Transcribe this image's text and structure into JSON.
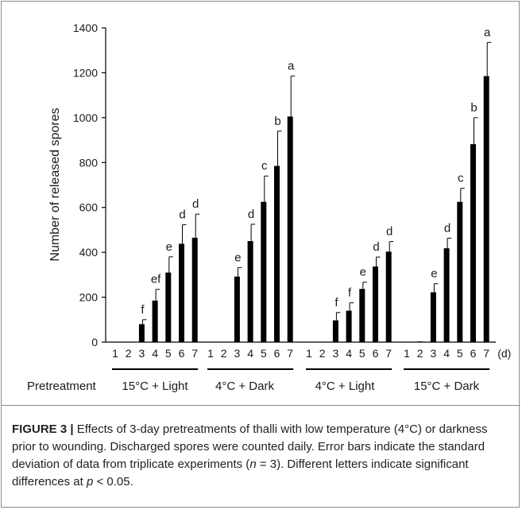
{
  "chart_data": {
    "type": "bar",
    "ylabel": "Number  of released spores",
    "ylim": [
      0,
      1400
    ],
    "yticks": [
      0,
      200,
      400,
      600,
      800,
      1000,
      1200,
      1400
    ],
    "x_unit": "(d)",
    "group_prefix": "Pretreatment",
    "grid": false,
    "groups": [
      {
        "name": "15°C + Light",
        "days": [
          "1",
          "2",
          "3",
          "4",
          "5",
          "6",
          "7"
        ],
        "values": [
          0,
          0,
          80,
          185,
          310,
          438,
          465
        ],
        "errors": [
          0,
          0,
          20,
          50,
          70,
          85,
          105
        ],
        "letters": [
          "",
          "",
          "f",
          "ef",
          "e",
          "d",
          "d"
        ]
      },
      {
        "name": "4°C + Dark",
        "days": [
          "1",
          "2",
          "3",
          "4",
          "5",
          "6",
          "7"
        ],
        "values": [
          0,
          0,
          292,
          450,
          625,
          785,
          1005
        ],
        "errors": [
          0,
          0,
          40,
          75,
          115,
          155,
          180
        ],
        "letters": [
          "",
          "",
          "e",
          "d",
          "c",
          "b",
          "a"
        ]
      },
      {
        "name": "4°C + Light",
        "days": [
          "1",
          "2",
          "3",
          "4",
          "5",
          "6",
          "7"
        ],
        "values": [
          0,
          0,
          97,
          140,
          237,
          337,
          403
        ],
        "errors": [
          0,
          0,
          35,
          35,
          30,
          42,
          45
        ],
        "letters": [
          "",
          "",
          "f",
          "f",
          "e",
          "d",
          "d"
        ]
      },
      {
        "name": "15°C + Dark",
        "days": [
          "1",
          "2",
          "3",
          "4",
          "5",
          "6",
          "7"
        ],
        "values": [
          0,
          3,
          222,
          418,
          625,
          882,
          1185
        ],
        "errors": [
          0,
          0,
          38,
          45,
          60,
          118,
          150
        ],
        "letters": [
          "",
          "",
          "e",
          "d",
          "c",
          "b",
          "a"
        ]
      }
    ]
  },
  "caption": {
    "figure_label": "FIGURE 3 |",
    "text_1": " Effects of 3-day pretreatments of thalli with low temperature (4°C) or darkness prior to wounding. Discharged spores were counted daily. Error bars indicate the standard deviation of data from triplicate experiments (",
    "n_symbol": "n",
    "text_2": " = 3). Different letters indicate significant differences at ",
    "p_symbol": "p",
    "text_3": " < 0.05."
  },
  "colors": {
    "bar": "#000000",
    "axis": "#000000",
    "frame": "#8c8c8c"
  }
}
